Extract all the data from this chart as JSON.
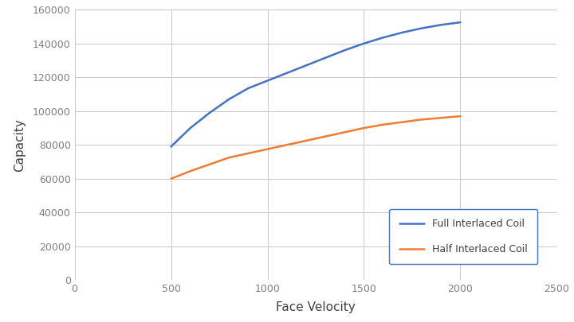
{
  "title": "",
  "xlabel": "Face Velocity",
  "ylabel": "Capacity",
  "xlim": [
    0,
    2500
  ],
  "ylim": [
    0,
    160000
  ],
  "xticks": [
    0,
    500,
    1000,
    1500,
    2000,
    2500
  ],
  "yticks": [
    0,
    20000,
    40000,
    60000,
    80000,
    100000,
    120000,
    140000,
    160000
  ],
  "series": [
    {
      "label": "Full Interlaced Coil",
      "color": "#4472C4",
      "x": [
        500,
        600,
        700,
        800,
        900,
        1000,
        1100,
        1200,
        1300,
        1400,
        1500,
        1600,
        1700,
        1800,
        1900,
        2000
      ],
      "y": [
        79000,
        90000,
        99000,
        107000,
        113500,
        118000,
        122500,
        127000,
        131500,
        136000,
        140000,
        143500,
        146500,
        149000,
        151000,
        152500
      ]
    },
    {
      "label": "Half Interlaced Coil",
      "color": "#ED7D31",
      "x": [
        500,
        600,
        700,
        800,
        900,
        1000,
        1100,
        1200,
        1300,
        1400,
        1500,
        1600,
        1700,
        1800,
        1900,
        2000
      ],
      "y": [
        60000,
        64500,
        68500,
        72500,
        75000,
        77500,
        80000,
        82500,
        85000,
        87500,
        90000,
        92000,
        93500,
        95000,
        96000,
        97000
      ]
    }
  ],
  "background_color": "#ffffff",
  "grid_color": "#c8c8c8",
  "linewidth": 1.8,
  "label_fontsize": 11,
  "tick_fontsize": 9,
  "tick_color": "#808080",
  "legend_fontsize": 9,
  "legend_edge_color": "#4472C4"
}
